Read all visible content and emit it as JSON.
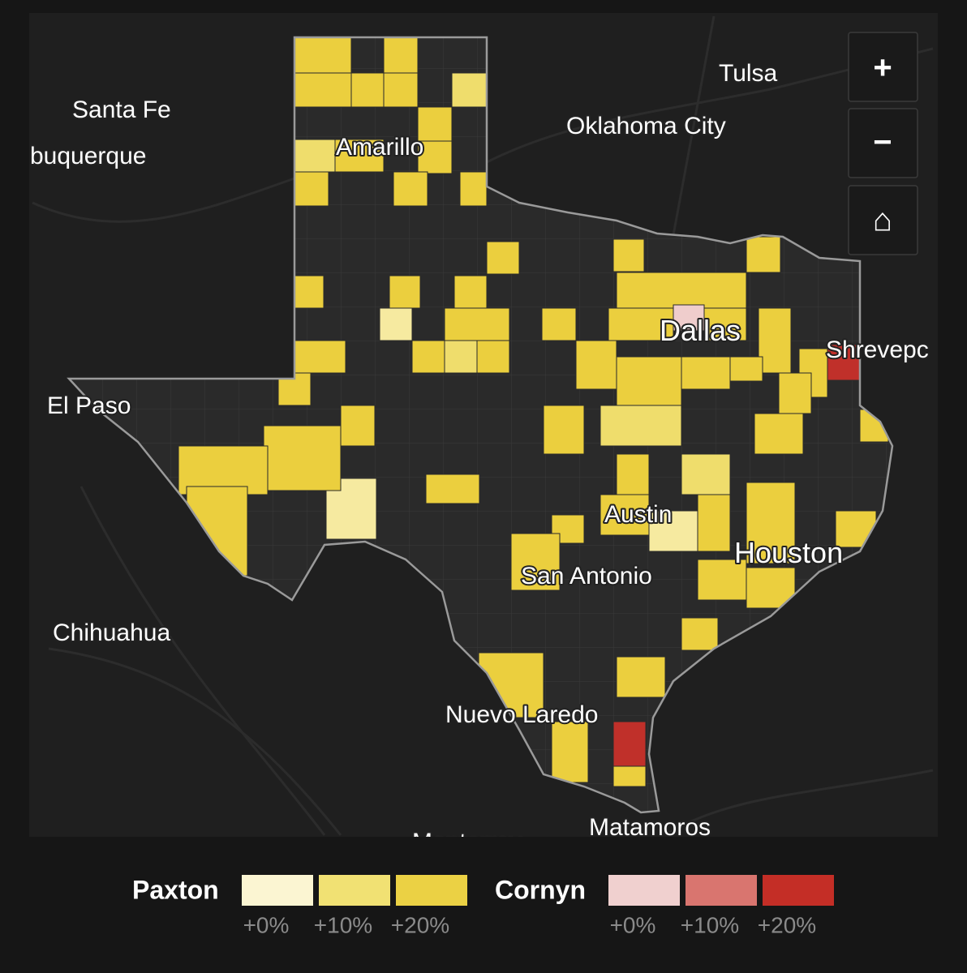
{
  "map": {
    "labels": [
      "Tulsa",
      "Santa Fe",
      "Oklahoma City",
      "buquerque",
      "Amarillo",
      "Dallas",
      "Shrevepc",
      "El Paso",
      "Austin",
      "Houston",
      "San Antonio",
      "Chihuahua",
      "Nuevo Laredo",
      "Matamoros",
      "Monterrey"
    ]
  },
  "controls": {
    "zoom_in": "+",
    "zoom_out": "−",
    "home": "⌂"
  },
  "legend": [
    {
      "name": "Paxton",
      "bins": [
        {
          "color": "#fbf5d2",
          "label": "+0%"
        },
        {
          "color": "#f1e173",
          "label": "+10%"
        },
        {
          "color": "#ebd144",
          "label": "+20%"
        }
      ]
    },
    {
      "name": "Cornyn",
      "bins": [
        {
          "color": "#f0d0cf",
          "label": "+0%"
        },
        {
          "color": "#d9756f",
          "label": "+10%"
        },
        {
          "color": "#c42e26",
          "label": "+20%"
        }
      ]
    }
  ]
}
